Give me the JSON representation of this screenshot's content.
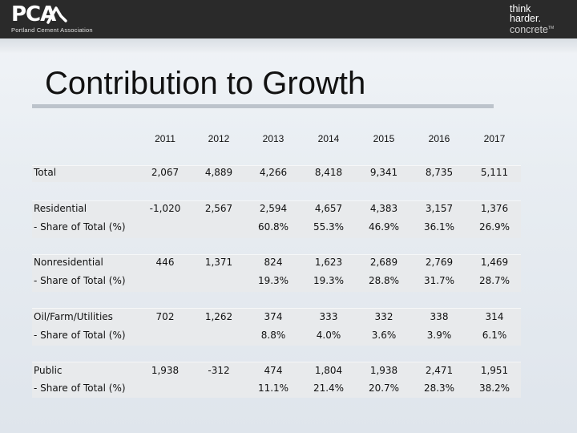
{
  "header": {
    "logo_left": "PCA",
    "logo_left_sub": "Portland Cement Association",
    "logo_right_lines": [
      "think",
      "harder.",
      "concrete"
    ],
    "logo_right_mark": "TM"
  },
  "title": "Contribution to Growth",
  "years": [
    "2011",
    "2012",
    "2013",
    "2014",
    "2015",
    "2016",
    "2017"
  ],
  "rows": [
    {
      "label": "Total",
      "values": [
        "2,067",
        "4,889",
        "4,266",
        "8,418",
        "9,341",
        "8,735",
        "5,111"
      ],
      "share_label": "",
      "share": []
    },
    {
      "label": "Residential",
      "values": [
        "-1,020",
        "2,567",
        "2,594",
        "4,657",
        "4,383",
        "3,157",
        "1,376"
      ],
      "share_label": "- Share of Total (%)",
      "share": [
        "",
        "",
        "60.8%",
        "55.3%",
        "46.9%",
        "36.1%",
        "26.9%"
      ]
    },
    {
      "label": "Nonresidential",
      "values": [
        "446",
        "1,371",
        "824",
        "1,623",
        "2,689",
        "2,769",
        "1,469"
      ],
      "share_label": "- Share of Total (%)",
      "share": [
        "",
        "",
        "19.3%",
        "19.3%",
        "28.8%",
        "31.7%",
        "28.7%"
      ]
    },
    {
      "label": "Oil/Farm/Utilities",
      "values": [
        "702",
        "1,262",
        "374",
        "333",
        "332",
        "338",
        "314"
      ],
      "share_label": "- Share of Total (%)",
      "share": [
        "",
        "",
        "8.8%",
        "4.0%",
        "3.6%",
        "3.9%",
        "6.1%"
      ]
    },
    {
      "label": "Public",
      "values": [
        "1,938",
        "-312",
        "474",
        "1,804",
        "1,938",
        "2,471",
        "1,951"
      ],
      "share_label": "- Share of Total (%)",
      "share": [
        "",
        "",
        "11.1%",
        "21.4%",
        "20.7%",
        "28.3%",
        "38.2%"
      ]
    }
  ]
}
